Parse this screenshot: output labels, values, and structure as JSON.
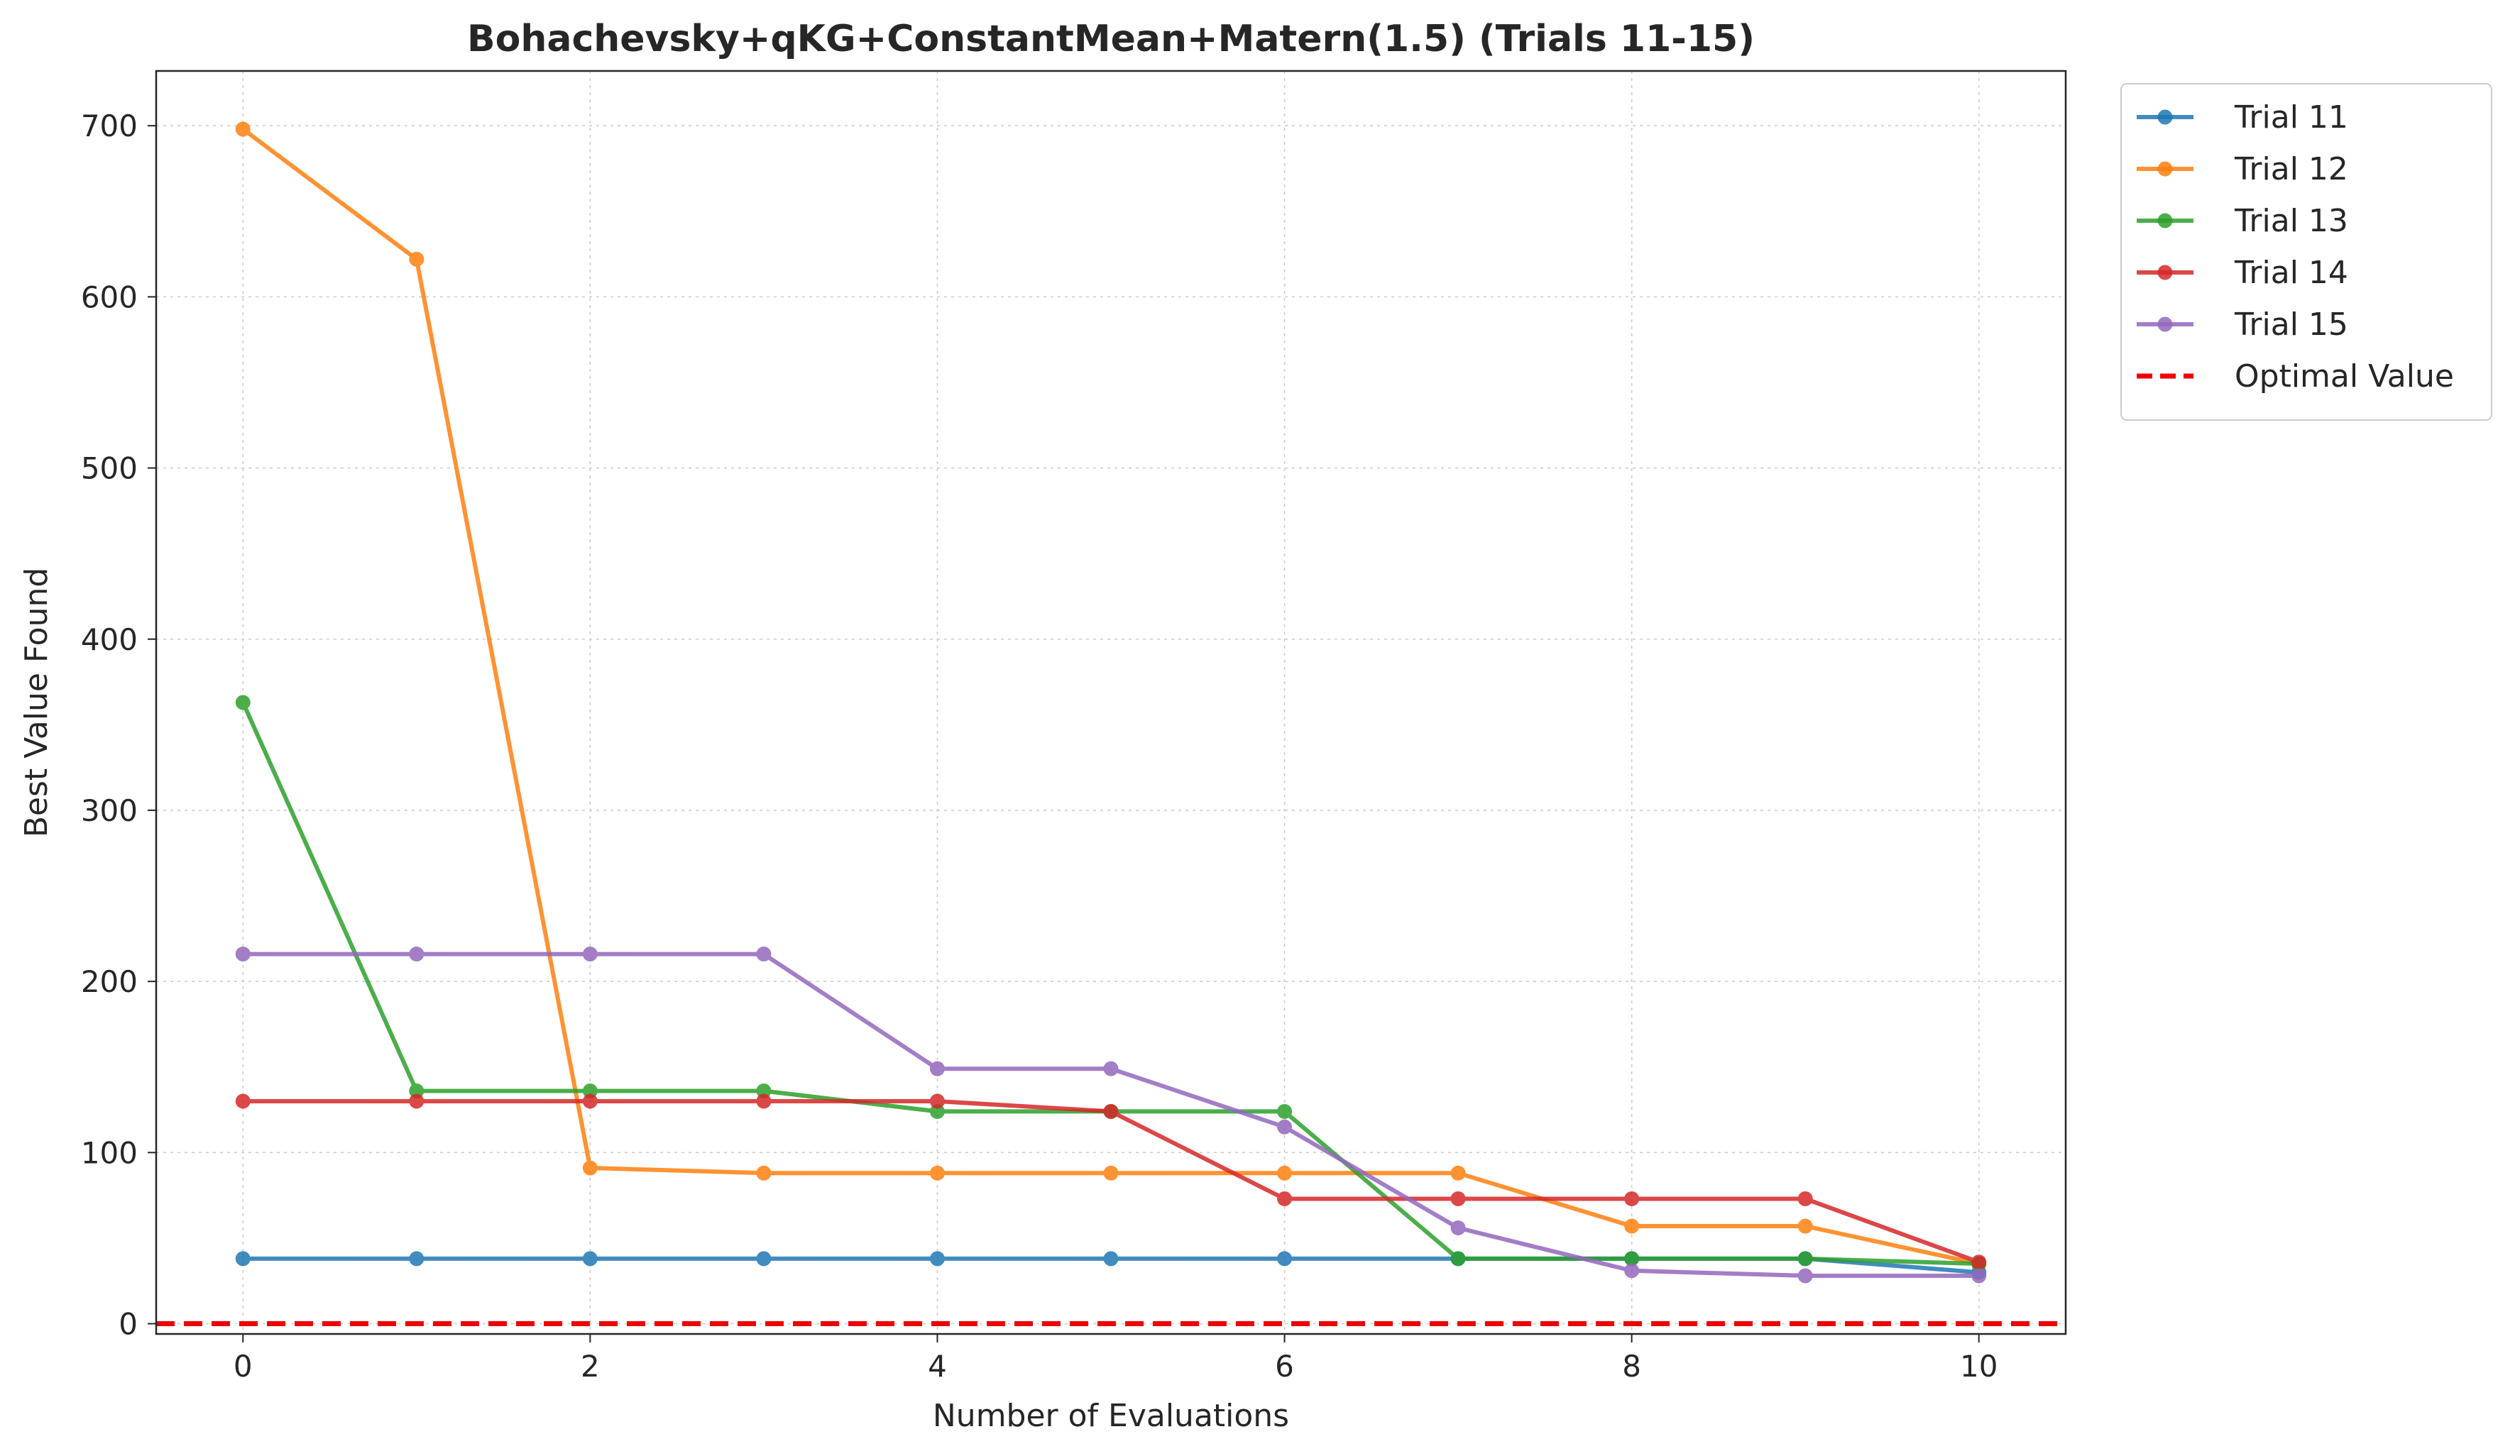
{
  "chart_data": {
    "type": "line",
    "title": "Bohachevsky+qKG+ConstantMean+Matern(1.5) (Trials 11-15)",
    "xlabel": "Number of Evaluations",
    "ylabel": "Best Value Found",
    "xlim": [
      -0.5,
      10.5
    ],
    "ylim": [
      -6,
      732
    ],
    "xticks": [
      0,
      2,
      4,
      6,
      8,
      10
    ],
    "yticks": [
      0,
      100,
      200,
      300,
      400,
      500,
      600,
      700
    ],
    "grid": true,
    "legend_position": "outside-top-right",
    "x": [
      0,
      1,
      2,
      3,
      4,
      5,
      6,
      7,
      8,
      9,
      10
    ],
    "series": [
      {
        "name": "Trial 11",
        "color": "#1f77b4",
        "values": [
          38,
          38,
          38,
          38,
          38,
          38,
          38,
          38,
          38,
          38,
          30
        ]
      },
      {
        "name": "Trial 12",
        "color": "#ff7f0e",
        "values": [
          698,
          622,
          91,
          88,
          88,
          88,
          88,
          88,
          57,
          57,
          35
        ]
      },
      {
        "name": "Trial 13",
        "color": "#2ca02c",
        "values": [
          363,
          136,
          136,
          136,
          124,
          124,
          124,
          38,
          38,
          38,
          35
        ]
      },
      {
        "name": "Trial 14",
        "color": "#d62728",
        "values": [
          130,
          130,
          130,
          130,
          130,
          124,
          73,
          73,
          73,
          73,
          36
        ]
      },
      {
        "name": "Trial 15",
        "color": "#9467bd",
        "values": [
          216,
          216,
          216,
          216,
          149,
          149,
          115,
          56,
          31,
          28,
          28
        ]
      }
    ],
    "reference_line": {
      "name": "Optimal Value",
      "value": 0,
      "color": "#ee0000",
      "style": "dashed"
    }
  }
}
